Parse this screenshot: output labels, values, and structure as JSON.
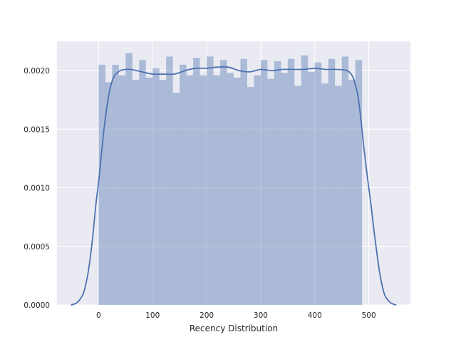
{
  "chart_data": {
    "type": "bar",
    "subtype": "histogram-with-kde",
    "title": "",
    "xlabel": "Recency Distribution",
    "ylabel": "",
    "xlim": [
      -77,
      577
    ],
    "ylim": [
      0,
      0.00225
    ],
    "grid": true,
    "background_color": "#EAEAF2",
    "bar_color": "#4C72B0",
    "bar_alpha": 0.4,
    "line_color": "#4C72B0",
    "x_ticks": [
      0,
      100,
      200,
      300,
      400,
      500
    ],
    "x_tick_labels": [
      "0",
      "100",
      "200",
      "300",
      "400",
      "500"
    ],
    "y_ticks": [
      0.0,
      0.0005,
      0.001,
      0.0015,
      0.002
    ],
    "y_tick_labels": [
      "0.0000",
      "0.0005",
      "0.0010",
      "0.0015",
      "0.0020"
    ],
    "histogram": {
      "bin_start": 0,
      "bin_width": 12.5,
      "values": [
        0.00205,
        0.0019,
        0.00205,
        0.00196,
        0.00215,
        0.00192,
        0.00209,
        0.00194,
        0.00202,
        0.00192,
        0.00212,
        0.00181,
        0.00205,
        0.00196,
        0.00211,
        0.00196,
        0.00212,
        0.00196,
        0.00209,
        0.00198,
        0.00194,
        0.0021,
        0.00186,
        0.00196,
        0.00209,
        0.00193,
        0.00208,
        0.00198,
        0.0021,
        0.00187,
        0.00213,
        0.00199,
        0.00207,
        0.00189,
        0.0021,
        0.00187,
        0.00212,
        0.00192,
        0.00209,
        0.0
      ]
    },
    "kde": {
      "x": [
        -50,
        -40,
        -30,
        -25,
        -20,
        -15,
        -10,
        -5,
        0,
        5,
        10,
        15,
        20,
        25,
        30,
        40,
        50,
        60,
        70,
        80,
        100,
        120,
        140,
        160,
        180,
        200,
        220,
        240,
        260,
        280,
        300,
        320,
        340,
        360,
        380,
        400,
        420,
        440,
        460,
        470,
        475,
        480,
        485,
        490,
        495,
        500,
        505,
        510,
        515,
        520,
        525,
        530,
        540,
        550
      ],
      "y": [
        0.0,
        2e-05,
        8e-05,
        0.00015,
        0.00026,
        0.00042,
        0.00062,
        0.00086,
        0.00105,
        0.00128,
        0.0015,
        0.00168,
        0.00182,
        0.00191,
        0.00196,
        0.002,
        0.00201,
        0.00201,
        0.002,
        0.00199,
        0.00197,
        0.00197,
        0.00197,
        0.002,
        0.00202,
        0.00202,
        0.00203,
        0.00203,
        0.002,
        0.00199,
        0.00201,
        0.002,
        0.00201,
        0.00201,
        0.00201,
        0.00202,
        0.00201,
        0.00201,
        0.002,
        0.00195,
        0.00188,
        0.00178,
        0.0016,
        0.00138,
        0.00118,
        0.001,
        0.00082,
        0.00062,
        0.00044,
        0.00028,
        0.00016,
        8e-05,
        2e-05,
        0.0
      ]
    }
  }
}
